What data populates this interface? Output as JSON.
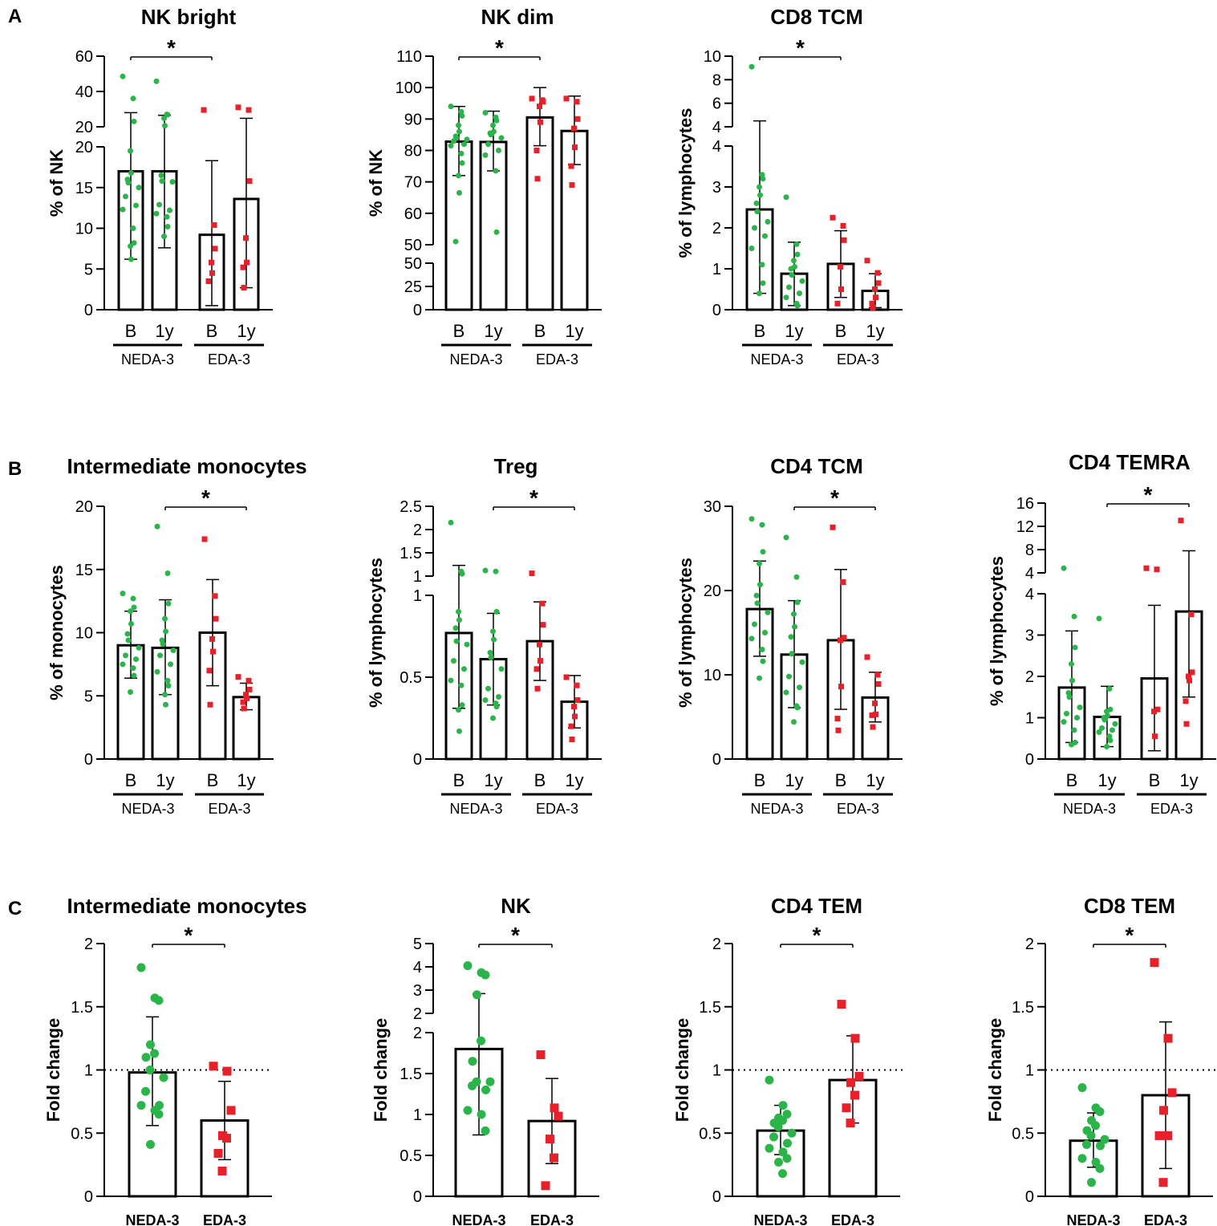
{
  "figure": {
    "panel_labels": [
      "A",
      "B",
      "C"
    ],
    "colors": {
      "neda": "#2bb44a",
      "eda": "#e8202a",
      "axis": "#000000"
    }
  },
  "chart_data": [
    {
      "id": "a1",
      "type": "bar",
      "title": "NK bright",
      "ylabel": "% of NK",
      "categories": [
        "B",
        "1y",
        "B",
        "1y"
      ],
      "groups": [
        "NEDA-3",
        "EDA-3"
      ],
      "ylim": [
        0,
        60
      ],
      "lower_range": [
        0,
        20
      ],
      "lower_ticks": [
        0,
        5,
        10,
        15,
        20
      ],
      "upper_range": [
        20,
        60
      ],
      "upper_ticks": [
        20,
        40,
        60
      ],
      "values": [
        17,
        17,
        9.2,
        13.6
      ],
      "sd": [
        [
          6.2,
          28
        ],
        [
          7.6,
          26.5
        ],
        [
          0.5,
          18.3
        ],
        [
          2.7,
          24.8
        ]
      ],
      "points": [
        [
          48.5,
          36,
          23,
          19.5,
          16.8,
          16,
          15.6,
          15,
          13.9,
          12.8,
          12.3,
          10,
          8.2,
          7.8,
          6.2
        ],
        [
          45.8,
          27,
          26.8,
          24.8,
          20.6,
          16.5,
          15.8,
          15.7,
          12.9,
          12.2,
          11.8,
          11.4,
          10.2,
          9
        ],
        [
          29.5,
          10.4,
          7.5,
          5.8,
          4.5,
          3.5
        ],
        [
          31,
          29.5,
          15.8,
          8.8,
          5.8,
          5.2,
          2.7
        ]
      ],
      "significance": {
        "from": 0,
        "to": 2,
        "label": "*"
      }
    },
    {
      "id": "a2",
      "type": "bar",
      "title": "NK dim",
      "ylabel": "% of NK",
      "categories": [
        "B",
        "1y",
        "B",
        "1y"
      ],
      "groups": [
        "NEDA-3",
        "EDA-3"
      ],
      "ylim": [
        0,
        110
      ],
      "lower_range": [
        0,
        50
      ],
      "lower_ticks": [
        0,
        25,
        50
      ],
      "upper_range": [
        50,
        110
      ],
      "upper_ticks": [
        50,
        60,
        70,
        80,
        90,
        100,
        110
      ],
      "values": [
        82.8,
        82.7,
        90.5,
        86.2
      ],
      "sd": [
        [
          72,
          94
        ],
        [
          73.5,
          92.5
        ],
        [
          81.5,
          100
        ],
        [
          75.5,
          97.3
        ]
      ],
      "points": [
        [
          94,
          92.3,
          91,
          88,
          86,
          84.5,
          84,
          83.5,
          83,
          82,
          81.5,
          79,
          76,
          72,
          66.5,
          51
        ],
        [
          92,
          90.5,
          89.5,
          88,
          86,
          85.5,
          85,
          84,
          82,
          80,
          78.5,
          73.5,
          54
        ],
        [
          96.5,
          96,
          95.5,
          94,
          89,
          80,
          71
        ],
        [
          96.5,
          95.5,
          90,
          87,
          81,
          75,
          69
        ]
      ],
      "significance": {
        "from": 0,
        "to": 2,
        "label": "*"
      }
    },
    {
      "id": "a3",
      "type": "bar",
      "title": "CD8 TCM",
      "ylabel": "% of lymphocytes",
      "categories": [
        "B",
        "1y",
        "B",
        "1y"
      ],
      "groups": [
        "NEDA-3",
        "EDA-3"
      ],
      "ylim": [
        0,
        10
      ],
      "lower_range": [
        0,
        4
      ],
      "lower_ticks": [
        0,
        1,
        2,
        3,
        4
      ],
      "upper_range": [
        4,
        10
      ],
      "upper_ticks": [
        4,
        6,
        8,
        10
      ],
      "values": [
        2.45,
        0.88,
        1.12,
        0.46
      ],
      "sd": [
        [
          0.4,
          4.5
        ],
        [
          0.1,
          1.65
        ],
        [
          0.3,
          1.93
        ],
        [
          0.05,
          0.88
        ]
      ],
      "points": [
        [
          9.1,
          3.3,
          3.2,
          3,
          2.8,
          2.6,
          2.4,
          2.15,
          2,
          1.8,
          1.5,
          1.1,
          0.65,
          0.4
        ],
        [
          2.75,
          1.6,
          1.35,
          1.2,
          1.05,
          1,
          0.85,
          0.7,
          0.55,
          0.4,
          0.3,
          0.15,
          0.1
        ],
        [
          2.25,
          2.05,
          1.7,
          1.05,
          0.5,
          0.15
        ],
        [
          1.2,
          0.9,
          0.65,
          0.5,
          0.3,
          0.15,
          0.05
        ]
      ],
      "significance": {
        "from": 0,
        "to": 2,
        "label": "*"
      }
    },
    {
      "id": "b1",
      "type": "bar",
      "title": "Intermediate monocytes",
      "ylabel": "% of monocytes",
      "categories": [
        "B",
        "1y",
        "B",
        "1y"
      ],
      "groups": [
        "NEDA-3",
        "EDA-3"
      ],
      "ylim": [
        0,
        20
      ],
      "ticks": [
        0,
        5,
        10,
        15,
        20
      ],
      "values": [
        9,
        8.8,
        10,
        4.9
      ],
      "sd": [
        [
          6.4,
          11.7
        ],
        [
          5.1,
          12.6
        ],
        [
          5.8,
          14.2
        ],
        [
          3.9,
          6
        ]
      ],
      "points": [
        [
          13.1,
          12.7,
          12,
          11.7,
          10.7,
          9.9,
          9.4,
          8.8,
          8.2,
          7.9,
          7.5,
          7.2,
          6.6,
          5.3
        ],
        [
          18.4,
          14.7,
          12.3,
          11.1,
          10.1,
          9.4,
          9.1,
          8.6,
          8.2,
          7.5,
          6.9,
          6.2,
          5.8,
          5.1,
          4.3
        ],
        [
          17.4,
          12.9,
          11.1,
          9.5,
          8.5,
          7,
          4.3
        ],
        [
          6.5,
          6.2,
          5.5,
          5.1,
          4.8,
          4.5,
          4
        ]
      ],
      "significance": {
        "from": 1,
        "to": 3,
        "label": "*"
      }
    },
    {
      "id": "b2",
      "type": "bar",
      "title": "Treg",
      "ylabel": "% of lymphocytes",
      "categories": [
        "B",
        "1y",
        "B",
        "1y"
      ],
      "groups": [
        "NEDA-3",
        "EDA-3"
      ],
      "ylim": [
        0,
        2.5
      ],
      "lower_range": [
        0,
        1
      ],
      "lower_ticks": [
        0,
        0.5,
        1
      ],
      "upper_range": [
        1,
        2.5
      ],
      "upper_ticks": [
        1,
        1.5,
        2,
        2.5
      ],
      "values": [
        0.77,
        0.61,
        0.72,
        0.35
      ],
      "sd": [
        [
          0.31,
          1.23
        ],
        [
          0.33,
          0.89
        ],
        [
          0.48,
          0.96
        ],
        [
          0.19,
          0.51
        ]
      ],
      "points": [
        [
          2.15,
          1.1,
          1.05,
          0.9,
          0.85,
          0.8,
          0.72,
          0.7,
          0.6,
          0.55,
          0.48,
          0.45,
          0.33,
          0.3,
          0.17
        ],
        [
          1.12,
          1.1,
          0.9,
          0.78,
          0.73,
          0.65,
          0.62,
          0.55,
          0.43,
          0.38,
          0.36,
          0.34,
          0.32,
          0.25
        ],
        [
          1.06,
          0.95,
          0.82,
          0.7,
          0.6,
          0.55,
          0.43
        ],
        [
          0.5,
          0.45,
          0.36,
          0.32,
          0.26,
          0.2,
          0.12
        ]
      ],
      "significance": {
        "from": 1,
        "to": 3,
        "label": "*"
      }
    },
    {
      "id": "b3",
      "type": "bar",
      "title": "CD4 TCM",
      "ylabel": "% of lymphocytes",
      "categories": [
        "B",
        "1y",
        "B",
        "1y"
      ],
      "groups": [
        "NEDA-3",
        "EDA-3"
      ],
      "ylim": [
        0,
        30
      ],
      "ticks": [
        0,
        10,
        20,
        30
      ],
      "values": [
        17.8,
        12.4,
        14.1,
        7.3
      ],
      "sd": [
        [
          12.2,
          23.5
        ],
        [
          6.1,
          18.8
        ],
        [
          5.9,
          22.5
        ],
        [
          4.4,
          10.3
        ]
      ],
      "points": [
        [
          28.5,
          27.8,
          24.6,
          23.2,
          20.7,
          19.4,
          18.5,
          17.4,
          16,
          15,
          14.3,
          13,
          11.6,
          9.6
        ],
        [
          26.3,
          21.6,
          18.6,
          17.2,
          15.7,
          14.5,
          12.5,
          11.5,
          9.8,
          8.5,
          7.9,
          6.3,
          6.1,
          4.4
        ],
        [
          27.5,
          21,
          14.4,
          14.1,
          8.6,
          4.8,
          3.4
        ],
        [
          12.1,
          10,
          8.9,
          6.6,
          5.3,
          5.2,
          3.8
        ]
      ],
      "significance": {
        "from": 1,
        "to": 3,
        "label": "*"
      }
    },
    {
      "id": "b4",
      "type": "bar",
      "title": "CD4 TEMRA",
      "ylabel": "% of lymphocytes",
      "categories": [
        "B",
        "1y",
        "B",
        "1y"
      ],
      "groups": [
        "NEDA-3",
        "EDA-3"
      ],
      "ylim": [
        0,
        16
      ],
      "lower_range": [
        0,
        4
      ],
      "lower_ticks": [
        0,
        1,
        2,
        3,
        4
      ],
      "upper_range": [
        4,
        16
      ],
      "upper_ticks": [
        4,
        8,
        12,
        16
      ],
      "values": [
        1.73,
        1.02,
        1.95,
        3.57
      ],
      "sd": [
        [
          0.4,
          3.1
        ],
        [
          0.3,
          1.76
        ],
        [
          0.2,
          3.72
        ],
        [
          1.5,
          7.8
        ]
      ],
      "points": [
        [
          4.8,
          3.45,
          2.7,
          2.3,
          1.9,
          1.6,
          1.5,
          1.25,
          1.1,
          1,
          0.9,
          0.7,
          0.4,
          0.35
        ],
        [
          3.4,
          1.7,
          1.2,
          1.15,
          1.05,
          1,
          0.95,
          0.85,
          0.75,
          0.7,
          0.65,
          0.55,
          0.45,
          0.3
        ],
        [
          4.8,
          4.6,
          1.2,
          1.15,
          0.55
        ],
        [
          13,
          3.5,
          2.1,
          2,
          1.9,
          1.4,
          0.85
        ]
      ],
      "significance": {
        "from": 1,
        "to": 3,
        "label": "*"
      }
    },
    {
      "id": "c1",
      "type": "bar",
      "title": "Intermediate monocytes",
      "ylabel": "Fold change",
      "categories": [
        "NEDA-3",
        "EDA-3"
      ],
      "ylim": [
        0,
        2
      ],
      "ticks": [
        0,
        0.5,
        1,
        1.5,
        2
      ],
      "reference_line": 1,
      "values": [
        0.98,
        0.6
      ],
      "sd": [
        [
          0.56,
          1.42
        ],
        [
          0.29,
          0.91
        ]
      ],
      "points": [
        [
          1.81,
          1.57,
          1.55,
          1.2,
          1.13,
          1.1,
          1,
          0.94,
          0.83,
          0.72,
          0.72,
          0.68,
          0.65,
          0.41
        ],
        [
          1.03,
          0.99,
          0.68,
          0.48,
          0.46,
          0.34,
          0.2
        ]
      ],
      "significance": {
        "from": 0,
        "to": 1,
        "label": "*"
      }
    },
    {
      "id": "c2",
      "type": "bar",
      "title": "NK",
      "ylabel": "Fold change",
      "categories": [
        "NEDA-3",
        "EDA-3"
      ],
      "ylim": [
        0,
        5
      ],
      "lower_range": [
        0,
        2
      ],
      "lower_ticks": [
        0,
        0.5,
        1,
        1.5,
        2
      ],
      "upper_range": [
        2,
        5
      ],
      "upper_ticks": [
        2,
        3,
        4,
        5
      ],
      "values": [
        1.8,
        0.92
      ],
      "sd": [
        [
          0.75,
          2.85
        ],
        [
          0.4,
          1.44
        ]
      ],
      "points": [
        [
          4.05,
          3.75,
          3.65,
          2.8,
          1.9,
          1.65,
          1.4,
          1.4,
          1.35,
          1.3,
          1.05,
          1,
          0.8
        ],
        [
          1.73,
          1.08,
          0.98,
          0.7,
          0.47,
          0.13
        ]
      ],
      "significance": {
        "from": 0,
        "to": 1,
        "label": "*"
      }
    },
    {
      "id": "c3",
      "type": "bar",
      "title": "CD4 TEM",
      "ylabel": "Fold change",
      "categories": [
        "NEDA-3",
        "EDA-3"
      ],
      "ylim": [
        0,
        2
      ],
      "ticks": [
        0,
        0.5,
        1,
        1.5,
        2
      ],
      "reference_line": 1,
      "values": [
        0.52,
        0.92
      ],
      "sd": [
        [
          0.33,
          0.72
        ],
        [
          0.58,
          1.27
        ]
      ],
      "points": [
        [
          0.92,
          0.72,
          0.65,
          0.62,
          0.6,
          0.58,
          0.55,
          0.5,
          0.47,
          0.42,
          0.38,
          0.35,
          0.3,
          0.27,
          0.18
        ],
        [
          1.52,
          1.25,
          0.95,
          0.9,
          0.8,
          0.7,
          0.58
        ]
      ],
      "significance": {
        "from": 0,
        "to": 1,
        "label": "*"
      }
    },
    {
      "id": "c4",
      "type": "bar",
      "title": "CD8 TEM",
      "ylabel": "Fold change",
      "categories": [
        "NEDA-3",
        "EDA-3"
      ],
      "ylim": [
        0,
        2
      ],
      "ticks": [
        0,
        0.5,
        1,
        1.5,
        2
      ],
      "reference_line": 1,
      "values": [
        0.44,
        0.8
      ],
      "sd": [
        [
          0.23,
          0.66
        ],
        [
          0.22,
          1.38
        ]
      ],
      "points": [
        [
          0.86,
          0.7,
          0.67,
          0.6,
          0.56,
          0.52,
          0.48,
          0.45,
          0.41,
          0.4,
          0.3,
          0.27,
          0.22,
          0.11
        ],
        [
          1.85,
          1.25,
          0.82,
          0.68,
          0.48,
          0.48,
          0.11
        ]
      ],
      "significance": {
        "from": 0,
        "to": 1,
        "label": "*"
      }
    }
  ]
}
